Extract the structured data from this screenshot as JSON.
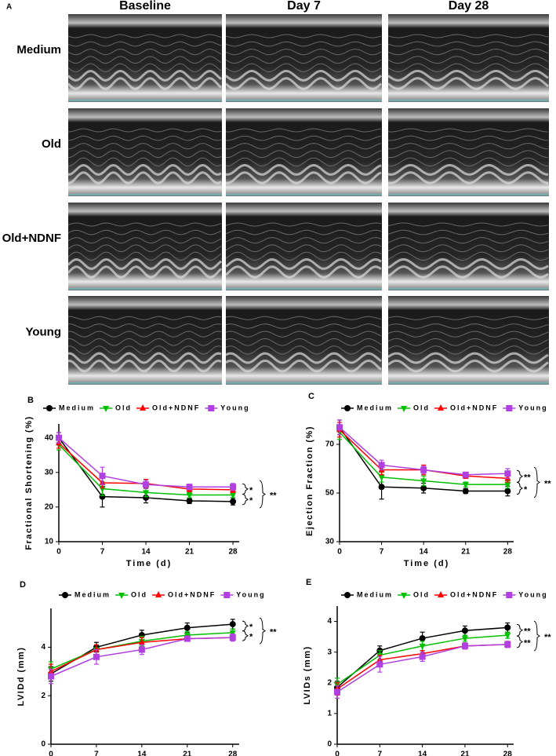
{
  "panel_a": {
    "label": "A",
    "columns": [
      "Baseline",
      "Day 7",
      "Day 28"
    ],
    "rows": [
      "Medium",
      "Old",
      "Old+NDNF",
      "Young"
    ]
  },
  "chart_data": [
    {
      "type": "line",
      "panel_label": "B",
      "ylabel": "Fractional Shortening (%)",
      "xlabel": "Time (d)",
      "x": [
        0,
        7,
        14,
        21,
        28
      ],
      "xlim": [
        0,
        29
      ],
      "xticks": [
        0,
        7,
        14,
        21,
        28
      ],
      "ylim": [
        10,
        44
      ],
      "yticks": [
        10,
        20,
        30,
        40
      ],
      "series": [
        {
          "name": "Medium",
          "color": "#000000",
          "marker": "circle",
          "values": [
            40,
            23,
            22.7,
            21.8,
            21.6
          ],
          "errors": [
            1.5,
            3,
            1.5,
            0.8,
            1
          ]
        },
        {
          "name": "Old",
          "color": "#00c000",
          "marker": "triangle-down",
          "values": [
            38,
            25.3,
            24.2,
            23.5,
            23.5
          ],
          "errors": [
            1.5,
            2,
            1.2,
            0.8,
            0.8
          ]
        },
        {
          "name": "Old+NDNF",
          "color": "#ff0000",
          "marker": "triangle-up",
          "values": [
            38.5,
            27,
            26.8,
            25.2,
            25
          ],
          "errors": [
            1.5,
            1.5,
            1.2,
            0.8,
            0.8
          ]
        },
        {
          "name": "Young",
          "color": "#b040e0",
          "marker": "square",
          "values": [
            40,
            29,
            26.5,
            25.8,
            25.8
          ],
          "errors": [
            1.5,
            2.5,
            1.2,
            0.8,
            1
          ]
        }
      ],
      "annotations": [
        "*",
        "*",
        "**"
      ]
    },
    {
      "type": "line",
      "panel_label": "C",
      "ylabel": "Ejection Fraction (%)",
      "xlabel": "Time (d)",
      "x": [
        0,
        7,
        14,
        21,
        28
      ],
      "xlim": [
        0,
        29
      ],
      "xticks": [
        0,
        7,
        14,
        21,
        28
      ],
      "ylim": [
        30,
        80
      ],
      "yticks": [
        30,
        50,
        70
      ],
      "series": [
        {
          "name": "Medium",
          "color": "#000000",
          "marker": "circle",
          "values": [
            77,
            52.5,
            52,
            50.8,
            50.8
          ],
          "errors": [
            3,
            5,
            2,
            1,
            2
          ]
        },
        {
          "name": "Old",
          "color": "#00c000",
          "marker": "triangle-down",
          "values": [
            75,
            56.5,
            55,
            53.5,
            53.5
          ],
          "errors": [
            3,
            2,
            2,
            1,
            1.5
          ]
        },
        {
          "name": "Old+NDNF",
          "color": "#ff0000",
          "marker": "triangle-up",
          "values": [
            76,
            59.5,
            59.5,
            57,
            56
          ],
          "errors": [
            3,
            2,
            2,
            1,
            1.5
          ]
        },
        {
          "name": "Young",
          "color": "#b040e0",
          "marker": "square",
          "values": [
            77,
            61.5,
            59.5,
            57.5,
            58
          ],
          "errors": [
            3,
            2,
            1.5,
            1,
            2
          ]
        }
      ],
      "annotations": [
        "**",
        "*",
        "**"
      ]
    },
    {
      "type": "line",
      "panel_label": "D",
      "ylabel": "LVIDd (mm)",
      "xlabel": "Time (d)",
      "x": [
        0,
        7,
        14,
        21,
        28
      ],
      "xlim": [
        0,
        29
      ],
      "xticks": [
        0,
        7,
        14,
        21,
        28
      ],
      "ylim": [
        0,
        5.6
      ],
      "yticks": [
        0,
        2,
        4
      ],
      "series": [
        {
          "name": "Medium",
          "color": "#000000",
          "marker": "circle",
          "values": [
            2.9,
            4.0,
            4.5,
            4.8,
            4.95
          ],
          "errors": [
            0.3,
            0.2,
            0.2,
            0.2,
            0.2
          ]
        },
        {
          "name": "Old",
          "color": "#00c000",
          "marker": "triangle-down",
          "values": [
            3.1,
            3.9,
            4.25,
            4.5,
            4.6
          ],
          "errors": [
            0.3,
            0.2,
            0.2,
            0.15,
            0.15
          ]
        },
        {
          "name": "Old+NDNF",
          "color": "#ff0000",
          "marker": "triangle-up",
          "values": [
            3.0,
            3.9,
            4.2,
            4.35,
            4.4
          ],
          "errors": [
            0.3,
            0.2,
            0.2,
            0.1,
            0.1
          ]
        },
        {
          "name": "Young",
          "color": "#b040e0",
          "marker": "square",
          "values": [
            2.8,
            3.6,
            3.9,
            4.35,
            4.4
          ],
          "errors": [
            0.3,
            0.3,
            0.2,
            0.1,
            0.15
          ]
        }
      ],
      "annotations": [
        "*",
        "*",
        "**"
      ]
    },
    {
      "type": "line",
      "panel_label": "E",
      "ylabel": "LVIDs (mm)",
      "xlabel": "Time (d)",
      "x": [
        0,
        7,
        14,
        21,
        28
      ],
      "xlim": [
        0,
        29
      ],
      "xticks": [
        0,
        7,
        14,
        21,
        28
      ],
      "ylim": [
        0,
        4.5
      ],
      "yticks": [
        0,
        1,
        2,
        3,
        4
      ],
      "series": [
        {
          "name": "Medium",
          "color": "#000000",
          "marker": "circle",
          "values": [
            1.85,
            3.05,
            3.45,
            3.7,
            3.8
          ],
          "errors": [
            0.2,
            0.15,
            0.2,
            0.15,
            0.15
          ]
        },
        {
          "name": "Old",
          "color": "#00c000",
          "marker": "triangle-down",
          "values": [
            1.95,
            2.9,
            3.2,
            3.45,
            3.55
          ],
          "errors": [
            0.2,
            0.15,
            0.15,
            0.1,
            0.1
          ]
        },
        {
          "name": "Old+NDNF",
          "color": "#ff0000",
          "marker": "triangle-up",
          "values": [
            1.8,
            2.75,
            2.95,
            3.2,
            3.25
          ],
          "errors": [
            0.2,
            0.15,
            0.1,
            0.1,
            0.1
          ]
        },
        {
          "name": "Young",
          "color": "#b040e0",
          "marker": "square",
          "values": [
            1.7,
            2.6,
            2.85,
            3.2,
            3.25
          ],
          "errors": [
            0.2,
            0.25,
            0.15,
            0.1,
            0.1
          ]
        }
      ],
      "annotations": [
        "**",
        "**",
        "**"
      ]
    }
  ]
}
